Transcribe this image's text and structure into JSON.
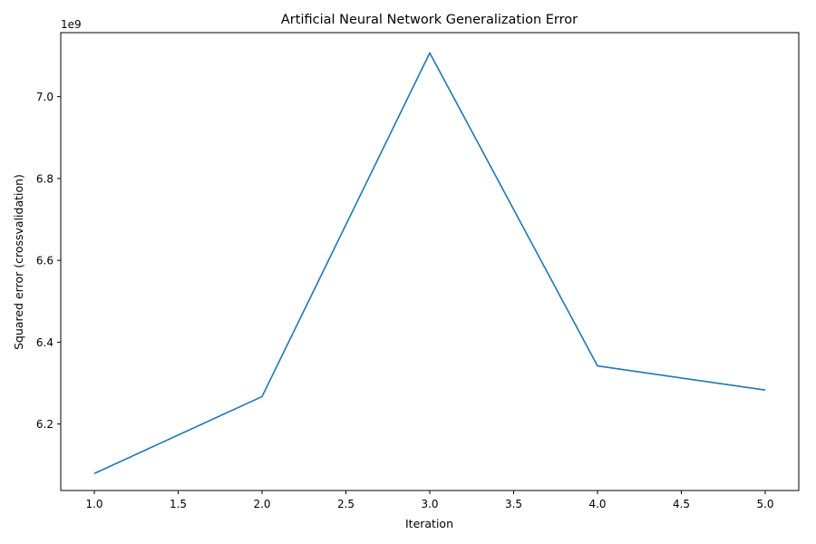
{
  "chart_data": {
    "type": "line",
    "title": "Artificial Neural Network Generalization Error",
    "xlabel": "Iteration",
    "ylabel": "Squared error (crossvalidation)",
    "y_offset_label": "1e9",
    "y_scale": 1000000000,
    "xlim": [
      0.8,
      5.2
    ],
    "ylim": [
      6.0375,
      7.1565
    ],
    "x_ticks": [
      1.0,
      1.5,
      2.0,
      2.5,
      3.0,
      3.5,
      4.0,
      4.5,
      5.0
    ],
    "x_tick_labels": [
      "1.0",
      "1.5",
      "2.0",
      "2.5",
      "3.0",
      "3.5",
      "4.0",
      "4.5",
      "5.0"
    ],
    "y_ticks": [
      6.2,
      6.4,
      6.6,
      6.8,
      7.0
    ],
    "y_tick_labels": [
      "6.2",
      "6.4",
      "6.6",
      "6.8",
      "7.0"
    ],
    "grid": false,
    "series": [
      {
        "color": "#1f77b4",
        "x": [
          1,
          2,
          3,
          4,
          5
        ],
        "y": [
          6.079,
          6.267,
          7.107,
          6.342,
          6.283
        ]
      }
    ]
  }
}
